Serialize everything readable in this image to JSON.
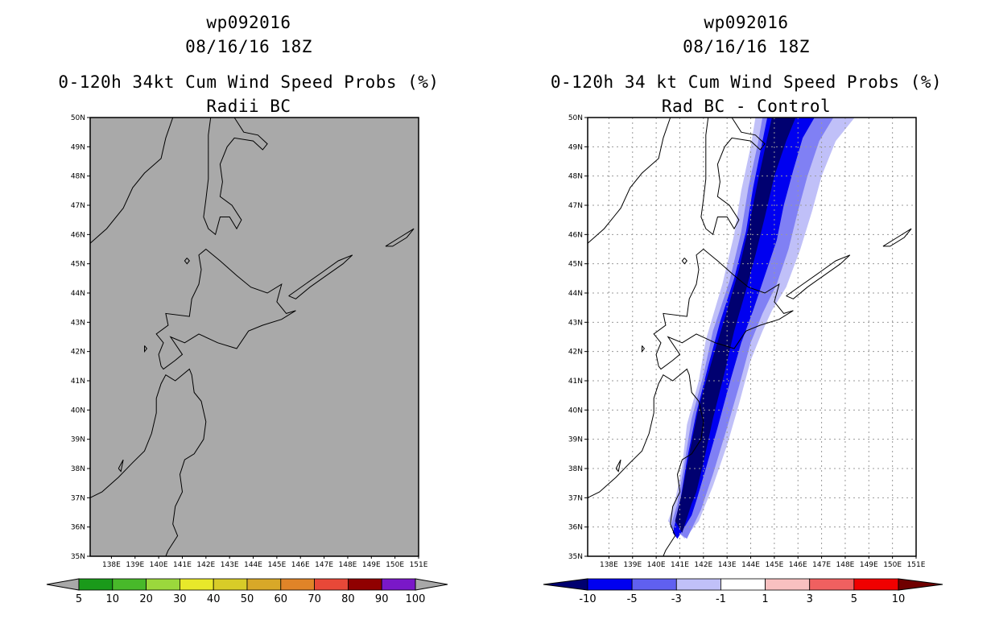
{
  "left": {
    "title_storm": "wp092016",
    "title_time": "08/16/16 18Z",
    "title_product": "0-120h 34kt Cum Wind Speed Probs (%)",
    "title_sub": "Radii BC",
    "colorbar": {
      "labels": [
        "5",
        "10",
        "20",
        "30",
        "40",
        "50",
        "60",
        "70",
        "80",
        "90",
        "100"
      ],
      "colors": [
        "#1a9a1a",
        "#48b92a",
        "#9bd83c",
        "#e8e82a",
        "#d8cc28",
        "#d8a828",
        "#e08428",
        "#e84838",
        "#900000",
        "#7a18c8"
      ],
      "arrow_color": "#a8a8a8"
    },
    "background_color": "#a9a9a9"
  },
  "right": {
    "title_storm": "wp092016",
    "title_time": "08/16/16 18Z",
    "title_product": "0-120h 34 kt Cum Wind Speed Probs (%)",
    "title_sub": "Rad BC - Control",
    "colorbar": {
      "labels": [
        "-10",
        "-5",
        "-3",
        "-1",
        "1",
        "3",
        "5",
        "10"
      ],
      "colors": [
        "#000070",
        "#0000f0",
        "#6060f0",
        "#c0c0f8",
        "#ffffff",
        "#f8c0c0",
        "#f06060",
        "#f00000",
        "#700000"
      ]
    },
    "difference_fill_colors": [
      "#c0c0f8",
      "#8080f4",
      "#0000f0",
      "#000070"
    ]
  },
  "map": {
    "lat_labels": [
      "50N",
      "49N",
      "48N",
      "47N",
      "46N",
      "45N",
      "44N",
      "43N",
      "42N",
      "41N",
      "40N",
      "39N",
      "38N",
      "37N",
      "36N",
      "35N"
    ],
    "lon_labels": [
      "138E",
      "139E",
      "140E",
      "141E",
      "142E",
      "143E",
      "144E",
      "145E",
      "146E",
      "147E",
      "148E",
      "149E",
      "150E",
      "151E"
    ]
  }
}
